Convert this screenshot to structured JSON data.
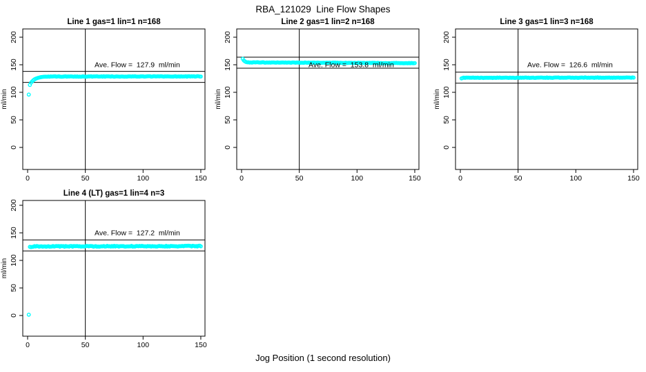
{
  "page": {
    "main_title": "RBA_121029  Line Flow Shapes",
    "x_axis_label": "Jog Position (1 second resolution)"
  },
  "colors": {
    "marker": "#00FFFF",
    "axis": "#000000",
    "background": "#FFFFFF",
    "text": "#000000"
  },
  "chart_data": [
    {
      "type": "scatter",
      "title": "Line 1 gas=1 lin=1 n=168",
      "annotation": "Ave. Flow =  127.9  ml/min",
      "ave_flow_ml_min": 127.9,
      "n": 168,
      "ylabel": "ml/min",
      "xticks": [
        0,
        50,
        100,
        150
      ],
      "yticks": [
        0,
        50,
        100,
        150,
        200
      ],
      "xlim": [
        -4,
        154
      ],
      "ylim": [
        -40,
        215
      ],
      "reference_vline_x": 50,
      "reference_hlines": [
        137.9,
        117.9
      ],
      "marker": "open-circle",
      "points_outliers": [
        [
          1,
          95.9
        ]
      ],
      "points_transient": [
        [
          2,
          113.4
        ],
        [
          3,
          117.5
        ],
        [
          4,
          120.0
        ],
        [
          5,
          122.0
        ],
        [
          6,
          123.5
        ],
        [
          7,
          124.6
        ],
        [
          8,
          125.5
        ],
        [
          9,
          126.2
        ],
        [
          10,
          126.8
        ],
        [
          11,
          127.3
        ],
        [
          12,
          127.7
        ],
        [
          13,
          128.0
        ],
        [
          14,
          128.3
        ]
      ],
      "flat_segment": {
        "x_start": 15,
        "x_end": 150,
        "value_start": 128.6,
        "value_end": 128.9,
        "noise": 0.45
      }
    },
    {
      "type": "scatter",
      "title": "Line 2 gas=1 lin=2 n=168",
      "annotation": "Ave. Flow =  153.8  ml/min",
      "ave_flow_ml_min": 153.8,
      "n": 168,
      "ylabel": "ml/min",
      "xticks": [
        0,
        50,
        100,
        150
      ],
      "yticks": [
        0,
        50,
        100,
        150,
        200
      ],
      "xlim": [
        -4,
        154
      ],
      "ylim": [
        -40,
        215
      ],
      "reference_vline_x": 50,
      "reference_hlines": [
        163.8,
        143.8
      ],
      "marker": "open-circle",
      "points_outliers": [],
      "points_transient": [
        [
          1,
          160.8
        ],
        [
          2,
          157.8
        ],
        [
          3,
          156.0
        ],
        [
          4,
          154.9
        ]
      ],
      "flat_segment": {
        "x_start": 5,
        "x_end": 150,
        "value_start": 154.3,
        "value_end": 152.9,
        "noise": 0.4
      }
    },
    {
      "type": "scatter",
      "title": "Line 3 gas=1 lin=3 n=168",
      "annotation": "Ave. Flow =  126.6  ml/min",
      "ave_flow_ml_min": 126.6,
      "n": 168,
      "ylabel": "ml/min",
      "xticks": [
        0,
        50,
        100,
        150
      ],
      "yticks": [
        0,
        50,
        100,
        150,
        200
      ],
      "xlim": [
        -4,
        154
      ],
      "ylim": [
        -40,
        215
      ],
      "reference_vline_x": 50,
      "reference_hlines": [
        136.6,
        116.6
      ],
      "marker": "open-circle",
      "points_outliers": [],
      "points_transient": [
        [
          1,
          125.3
        ],
        [
          2,
          126.0
        ]
      ],
      "flat_segment": {
        "x_start": 3,
        "x_end": 150,
        "value_start": 126.4,
        "value_end": 126.7,
        "noise": 0.45
      }
    },
    {
      "type": "scatter",
      "title": "Line 4 (LT) gas=1 lin=4 n=3",
      "annotation": "Ave. Flow =  127.2  ml/min",
      "ave_flow_ml_min": 127.2,
      "n": 3,
      "ylabel": "ml/min",
      "xticks": [
        0,
        50,
        100,
        150
      ],
      "yticks": [
        0,
        50,
        100,
        150,
        200
      ],
      "xlim": [
        -4,
        154
      ],
      "ylim": [
        -37,
        209
      ],
      "reference_vline_x": 50,
      "reference_hlines": [
        137.2,
        117.2
      ],
      "marker": "open-circle",
      "points_outliers": [
        [
          1,
          1.5
        ]
      ],
      "points_transient": [
        [
          2,
          124.6
        ],
        [
          3,
          124.1
        ],
        [
          4,
          124.5
        ]
      ],
      "flat_segment": {
        "x_start": 5,
        "x_end": 150,
        "value_start": 125.4,
        "value_end": 125.9,
        "noise": 0.75
      }
    }
  ]
}
